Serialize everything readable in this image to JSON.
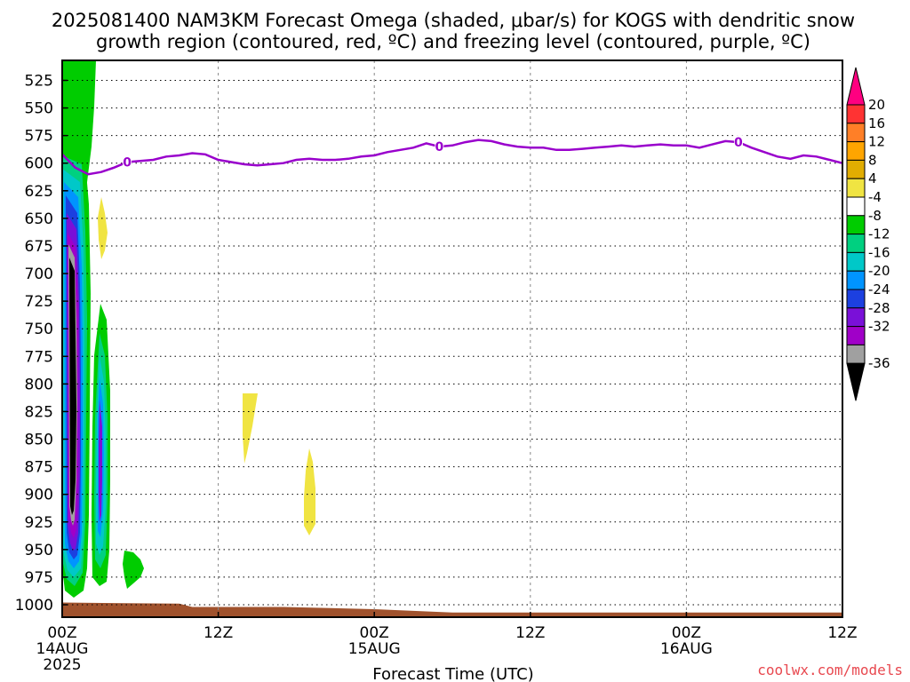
{
  "title": {
    "line1": "2025081400 NAM3KM Forecast Omega (shaded, μbar/s) for KOGS with dendritic snow",
    "line2": "growth region (contoured, red, ºC) and freezing level (contoured, purple, ºC)"
  },
  "credit": "coolwx.com/models",
  "chart_data": {
    "type": "heatmap",
    "xlabel": "Forecast Time (UTC)",
    "ylabel": "",
    "x_range_hours": [
      0,
      60
    ],
    "y_range_hPa": [
      510,
      1013
    ],
    "y_ticks": [
      "525",
      "550",
      "575",
      "600",
      "625",
      "650",
      "675",
      "700",
      "725",
      "750",
      "775",
      "800",
      "825",
      "850",
      "875",
      "900",
      "925",
      "950",
      "975",
      "1000"
    ],
    "x_ticks": [
      {
        "hour": 0,
        "line1": "00Z",
        "line2": "14AUG",
        "line3": "2025"
      },
      {
        "hour": 12,
        "line1": "12Z",
        "line2": "",
        "line3": ""
      },
      {
        "hour": 24,
        "line1": "00Z",
        "line2": "15AUG",
        "line3": ""
      },
      {
        "hour": 36,
        "line1": "12Z",
        "line2": "",
        "line3": ""
      },
      {
        "hour": 48,
        "line1": "00Z",
        "line2": "16AUG",
        "line3": ""
      },
      {
        "hour": 60,
        "line1": "12Z",
        "line2": "",
        "line3": ""
      }
    ],
    "grid": true,
    "colorbar": {
      "labels": [
        "20",
        "16",
        "12",
        "8",
        "4",
        "-4",
        "-8",
        "-12",
        "-16",
        "-20",
        "-24",
        "-28",
        "-32",
        "-36"
      ],
      "colors": [
        "#ff0080",
        "#ff3333",
        "#ff7f27",
        "#ffa500",
        "#e1ad01",
        "#f0e442",
        "#ffffff",
        "#00cc00",
        "#00d080",
        "#00c8c8",
        "#0094ff",
        "#1c40e0",
        "#7a10d8",
        "#a000c8",
        "#a0a0a0",
        "#000000"
      ]
    },
    "freezing_level": {
      "color": "#9900cc",
      "label": "0",
      "points_hour_hPa": [
        [
          0,
          592
        ],
        [
          1,
          604
        ],
        [
          2,
          610
        ],
        [
          3,
          608
        ],
        [
          4,
          604
        ],
        [
          5,
          599
        ],
        [
          6,
          598
        ],
        [
          7,
          597
        ],
        [
          8,
          594
        ],
        [
          9,
          593
        ],
        [
          10,
          591
        ],
        [
          11,
          592
        ],
        [
          12,
          597
        ],
        [
          13,
          599
        ],
        [
          14,
          601
        ],
        [
          15,
          602
        ],
        [
          16,
          601
        ],
        [
          17,
          600
        ],
        [
          18,
          597
        ],
        [
          19,
          596
        ],
        [
          20,
          597
        ],
        [
          21,
          597
        ],
        [
          22,
          596
        ],
        [
          23,
          594
        ],
        [
          24,
          593
        ],
        [
          25,
          590
        ],
        [
          26,
          588
        ],
        [
          27,
          586
        ],
        [
          28,
          582
        ],
        [
          29,
          585
        ],
        [
          30,
          584
        ],
        [
          31,
          581
        ],
        [
          32,
          579
        ],
        [
          33,
          580
        ],
        [
          34,
          583
        ],
        [
          35,
          585
        ],
        [
          36,
          586
        ],
        [
          37,
          586
        ],
        [
          38,
          588
        ],
        [
          39,
          588
        ],
        [
          40,
          587
        ],
        [
          41,
          586
        ],
        [
          42,
          585
        ],
        [
          43,
          584
        ],
        [
          44,
          585
        ],
        [
          45,
          584
        ],
        [
          46,
          583
        ],
        [
          47,
          584
        ],
        [
          48,
          584
        ],
        [
          49,
          586
        ],
        [
          50,
          583
        ],
        [
          51,
          580
        ],
        [
          52,
          581
        ],
        [
          53,
          586
        ],
        [
          54,
          590
        ],
        [
          55,
          594
        ],
        [
          56,
          596
        ],
        [
          57,
          593
        ],
        [
          58,
          594
        ],
        [
          59,
          597
        ],
        [
          60,
          600
        ]
      ]
    },
    "omega_regions": [
      {
        "name": "upward motion column hour 0-2",
        "range_ubar_s": "-36 to -4"
      },
      {
        "name": "upward motion column hour 2.5-3.5",
        "range_ubar_s": "-32 to -4"
      },
      {
        "name": "weak upward hour 4.5-6",
        "range_ubar_s": "-8 to -4"
      },
      {
        "name": "weak downward hour 3 near 640 hPa",
        "range_ubar_s": "4 to 8"
      },
      {
        "name": "weak downward hour 14 near 790 hPa",
        "range_ubar_s": "4 to 8"
      },
      {
        "name": "weak downward hour 19 near 870 hPa",
        "range_ubar_s": "4 to 8"
      }
    ],
    "terrain": {
      "color": "#a0522d",
      "surface_hPa_by_hour": [
        [
          0,
          998
        ],
        [
          9,
          999
        ],
        [
          10,
          1002
        ],
        [
          17,
          1002
        ],
        [
          24,
          1004
        ],
        [
          30,
          1007
        ],
        [
          42,
          1007
        ],
        [
          60,
          1007
        ]
      ]
    }
  }
}
